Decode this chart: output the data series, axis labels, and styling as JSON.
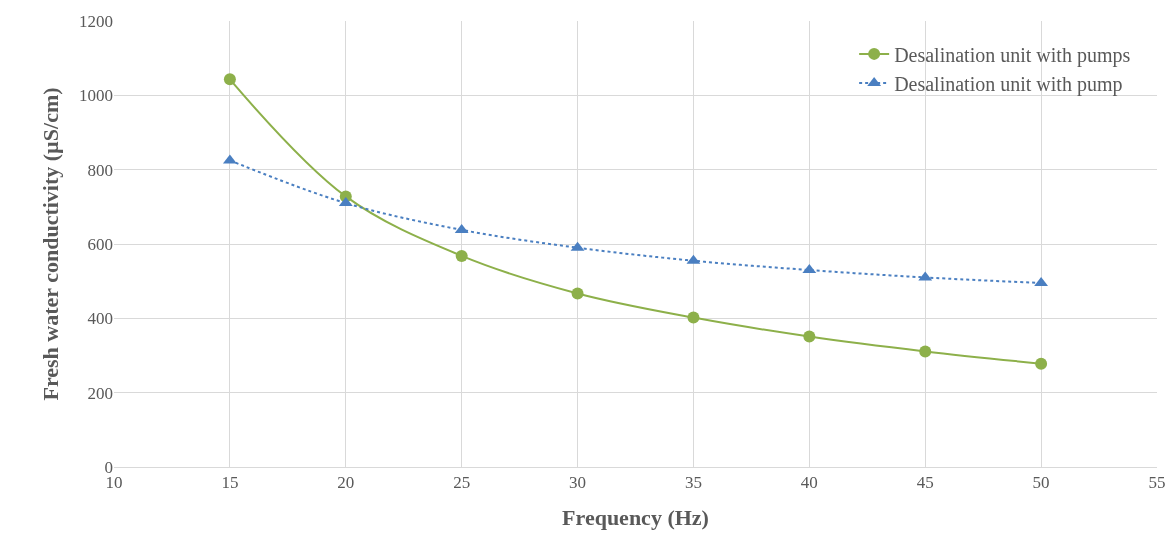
{
  "chart_data": {
    "type": "line",
    "xlabel": "Frequency (Hz)",
    "ylabel": "Fresh water conductivity (µS/cm)",
    "x": [
      15,
      20,
      25,
      30,
      35,
      40,
      45,
      50
    ],
    "series": [
      {
        "name": "Desalination unit with pumps",
        "color": "#8db04a",
        "values": [
          1043,
          728,
          568,
          467,
          402,
          351,
          311,
          278
        ],
        "marker": "circle",
        "line_style": "solid"
      },
      {
        "name": "Desalination unit with pump",
        "color": "#4a7fc1",
        "values": [
          825,
          710,
          638,
          590,
          555,
          530,
          510,
          495
        ],
        "marker": "triangle",
        "line_style": "dotted"
      }
    ],
    "xlim": [
      10,
      55
    ],
    "xticks": [
      10,
      15,
      20,
      25,
      30,
      35,
      40,
      45,
      50,
      55
    ],
    "ylim": [
      0,
      1200
    ],
    "yticks": [
      0,
      200,
      400,
      600,
      800,
      1000,
      1200
    ],
    "grid": true,
    "legend": "top right"
  }
}
